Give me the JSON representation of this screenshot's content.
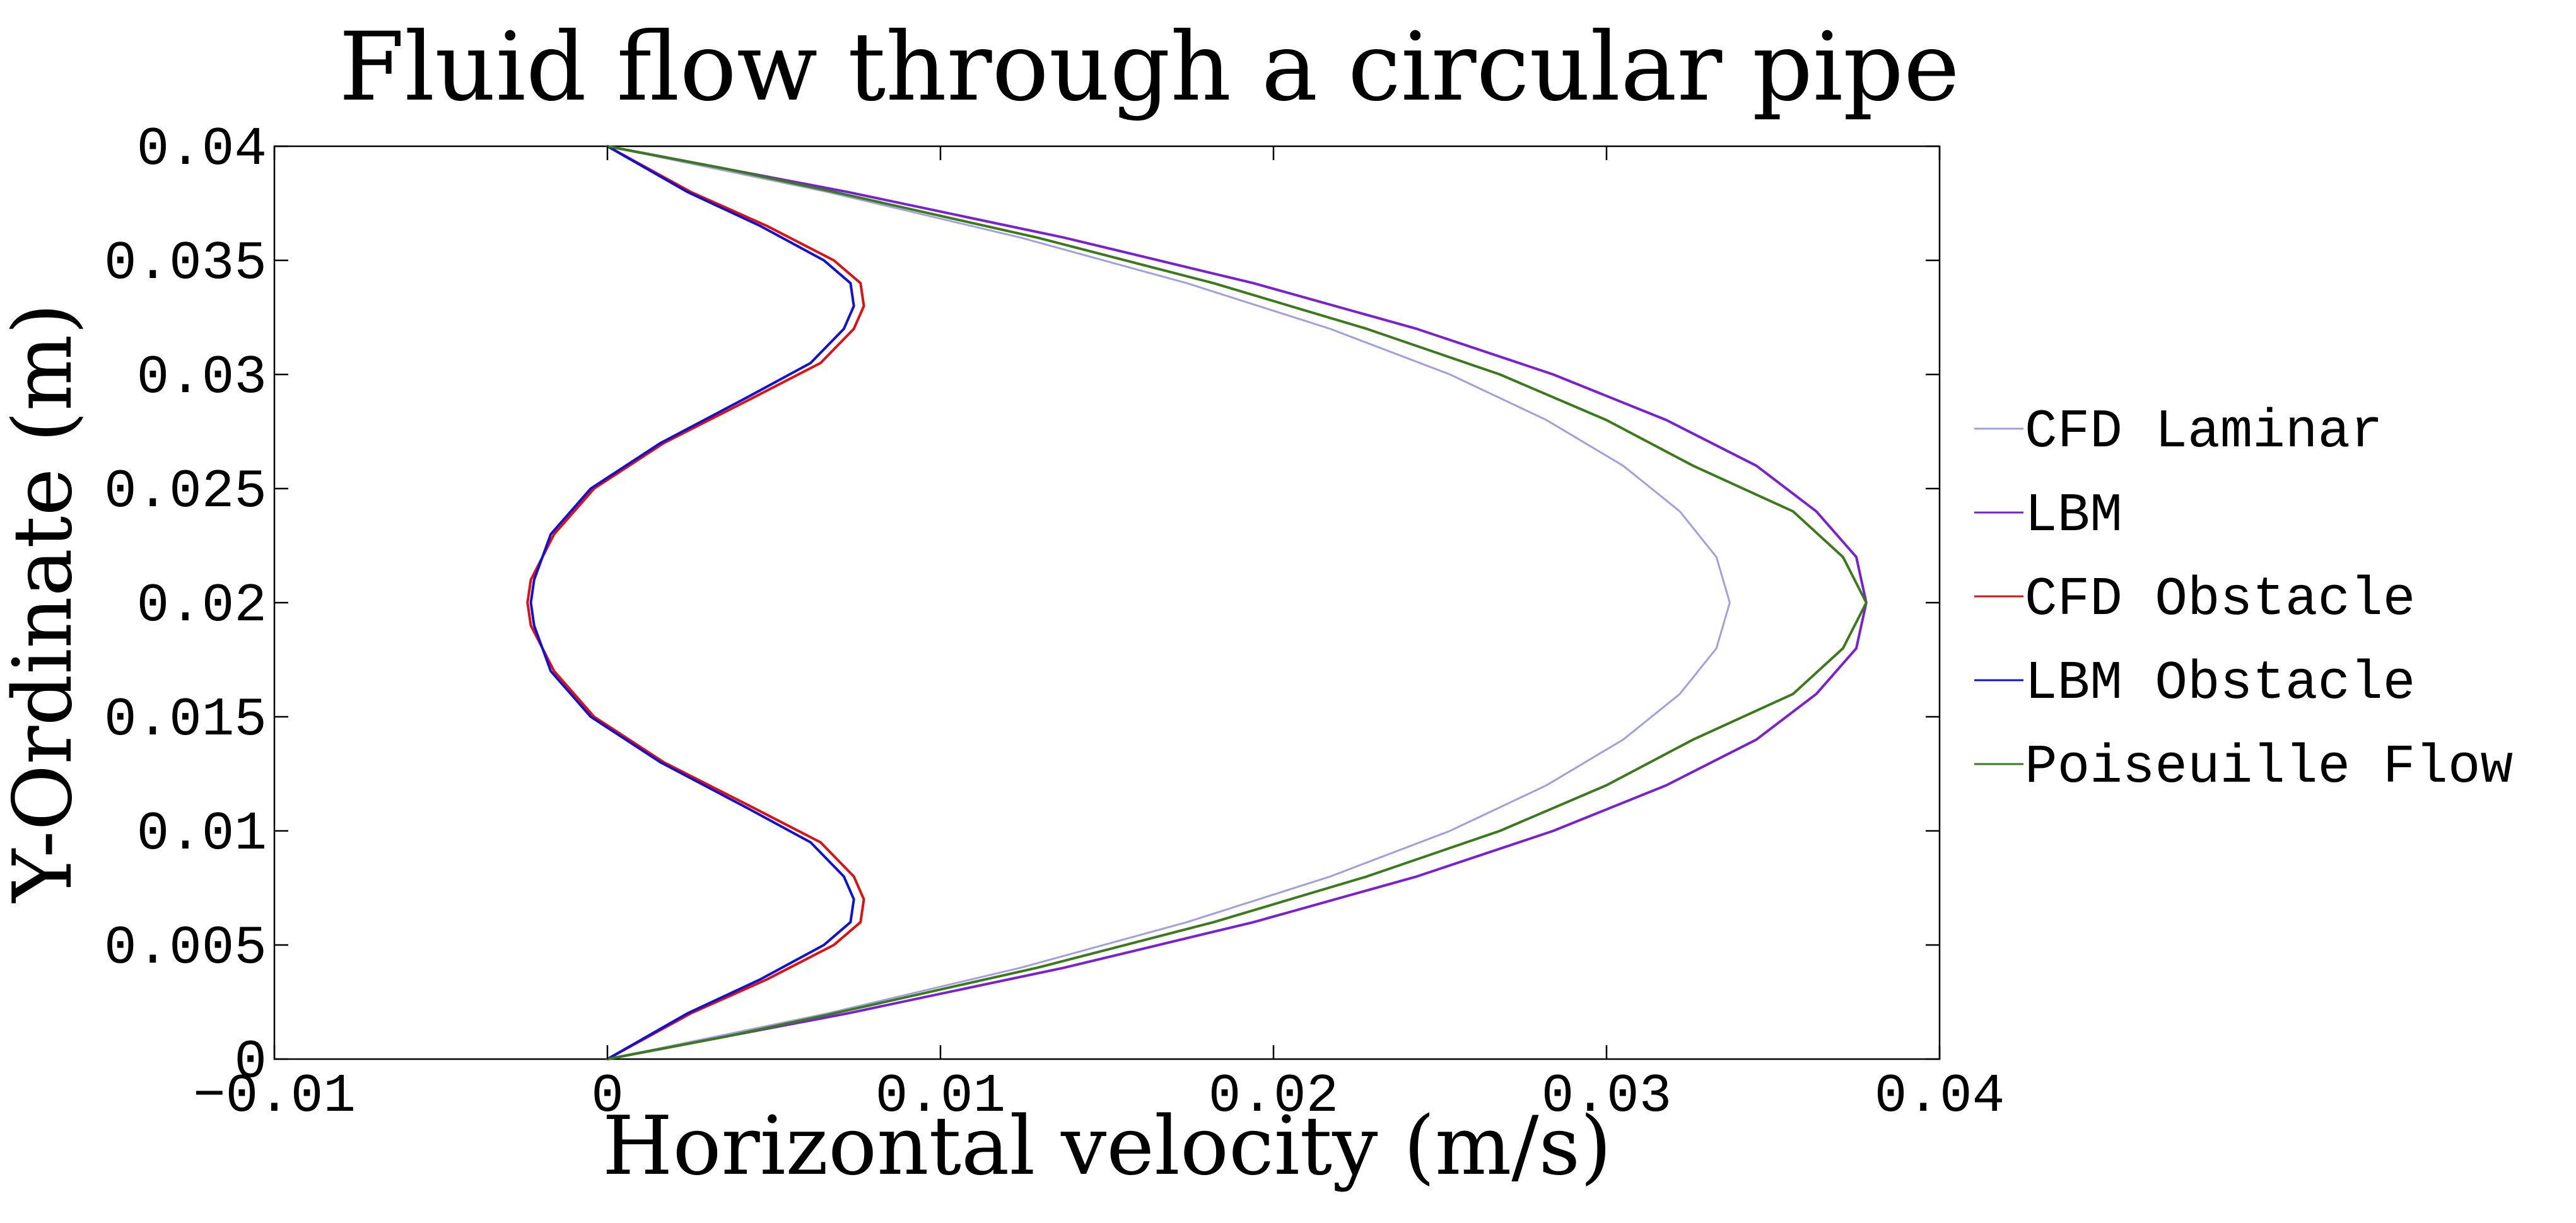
{
  "chart_data": {
    "type": "line",
    "title": "Fluid flow through a circular pipe",
    "xlabel": "Horizontal velocity (m/s)",
    "ylabel": "Y-Ordinate (m)",
    "xlim": [
      -0.01,
      0.04
    ],
    "ylim": [
      0,
      0.04
    ],
    "x_ticks": [
      -0.01,
      0,
      0.01,
      0.02,
      0.03,
      0.04
    ],
    "x_tick_labels": [
      "−0.01",
      "0",
      "0.01",
      "0.02",
      "0.03",
      "0.04"
    ],
    "y_ticks": [
      0,
      0.005,
      0.01,
      0.015,
      0.02,
      0.025,
      0.03,
      0.035,
      0.04
    ],
    "y_tick_labels": [
      "0",
      "0.005",
      "0.01",
      "0.015",
      "0.02",
      "0.025",
      "0.03",
      "0.035",
      "0.04"
    ],
    "grid": false,
    "legend_position": "right",
    "series": [
      {
        "name": "CFD Laminar",
        "color": "#a0a0e0",
        "points": [
          [
            0,
            0
          ],
          [
            0.0066,
            0.002
          ],
          [
            0.0124,
            0.004
          ],
          [
            0.0174,
            0.006
          ],
          [
            0.0217,
            0.008
          ],
          [
            0.0253,
            0.01
          ],
          [
            0.0282,
            0.012
          ],
          [
            0.0305,
            0.014
          ],
          [
            0.0322,
            0.016
          ],
          [
            0.0333,
            0.018
          ],
          [
            0.0337,
            0.02
          ],
          [
            0.0333,
            0.022
          ],
          [
            0.0322,
            0.024
          ],
          [
            0.0305,
            0.026
          ],
          [
            0.0282,
            0.028
          ],
          [
            0.0253,
            0.03
          ],
          [
            0.0217,
            0.032
          ],
          [
            0.0174,
            0.034
          ],
          [
            0.0124,
            0.036
          ],
          [
            0.0066,
            0.038
          ],
          [
            0,
            0.04
          ]
        ]
      },
      {
        "name": "LBM",
        "color": "#7a1fd6",
        "points": [
          [
            0,
            0
          ],
          [
            0.0072,
            0.002
          ],
          [
            0.0137,
            0.004
          ],
          [
            0.0194,
            0.006
          ],
          [
            0.0243,
            0.008
          ],
          [
            0.0284,
            0.01
          ],
          [
            0.0318,
            0.012
          ],
          [
            0.0345,
            0.014
          ],
          [
            0.0363,
            0.016
          ],
          [
            0.0375,
            0.018
          ],
          [
            0.0378,
            0.02
          ],
          [
            0.0375,
            0.022
          ],
          [
            0.0363,
            0.024
          ],
          [
            0.0345,
            0.026
          ],
          [
            0.0318,
            0.028
          ],
          [
            0.0284,
            0.03
          ],
          [
            0.0243,
            0.032
          ],
          [
            0.0194,
            0.034
          ],
          [
            0.0137,
            0.036
          ],
          [
            0.0072,
            0.038
          ],
          [
            0,
            0.04
          ]
        ]
      },
      {
        "name": "CFD Obstacle",
        "color": "#e01010",
        "points": [
          [
            0,
            0
          ],
          [
            0.0025,
            0.002
          ],
          [
            0.0048,
            0.0035
          ],
          [
            0.0068,
            0.005
          ],
          [
            0.0076,
            0.006
          ],
          [
            0.0077,
            0.007
          ],
          [
            0.0074,
            0.008
          ],
          [
            0.0064,
            0.0095
          ],
          [
            0.0044,
            0.011
          ],
          [
            0.0017,
            0.013
          ],
          [
            -0.0004,
            0.015
          ],
          [
            -0.0016,
            0.017
          ],
          [
            -0.0023,
            0.019
          ],
          [
            -0.0024,
            0.02
          ],
          [
            -0.0023,
            0.021
          ],
          [
            -0.0016,
            0.023
          ],
          [
            -0.0004,
            0.025
          ],
          [
            0.0017,
            0.027
          ],
          [
            0.0044,
            0.029
          ],
          [
            0.0064,
            0.0305
          ],
          [
            0.0074,
            0.032
          ],
          [
            0.0077,
            0.033
          ],
          [
            0.0076,
            0.034
          ],
          [
            0.0068,
            0.035
          ],
          [
            0.0048,
            0.0365
          ],
          [
            0.0025,
            0.038
          ],
          [
            0,
            0.04
          ]
        ]
      },
      {
        "name": "LBM Obstacle",
        "color": "#1010d8",
        "points": [
          [
            0,
            0
          ],
          [
            0.0024,
            0.002
          ],
          [
            0.0046,
            0.0035
          ],
          [
            0.0065,
            0.005
          ],
          [
            0.0073,
            0.006
          ],
          [
            0.0074,
            0.007
          ],
          [
            0.0071,
            0.008
          ],
          [
            0.0061,
            0.0095
          ],
          [
            0.0042,
            0.011
          ],
          [
            0.0016,
            0.013
          ],
          [
            -0.0005,
            0.015
          ],
          [
            -0.0017,
            0.017
          ],
          [
            -0.0022,
            0.019
          ],
          [
            -0.0023,
            0.02
          ],
          [
            -0.0022,
            0.021
          ],
          [
            -0.0017,
            0.023
          ],
          [
            -0.0005,
            0.025
          ],
          [
            0.0016,
            0.027
          ],
          [
            0.0042,
            0.029
          ],
          [
            0.0061,
            0.0305
          ],
          [
            0.0071,
            0.032
          ],
          [
            0.0074,
            0.033
          ],
          [
            0.0073,
            0.034
          ],
          [
            0.0065,
            0.035
          ],
          [
            0.0046,
            0.0365
          ],
          [
            0.0024,
            0.038
          ],
          [
            0,
            0.04
          ]
        ]
      },
      {
        "name": "Poiseuille Flow",
        "color": "#3b7a1a",
        "points": [
          [
            0,
            0
          ],
          [
            0.0036,
            0.001
          ],
          [
            0.0068,
            0.002
          ],
          [
            0.0129,
            0.004
          ],
          [
            0.0182,
            0.006
          ],
          [
            0.0228,
            0.008
          ],
          [
            0.0268,
            0.01
          ],
          [
            0.03,
            0.012
          ],
          [
            0.0326,
            0.014
          ],
          [
            0.0356,
            0.016
          ],
          [
            0.0371,
            0.018
          ],
          [
            0.0378,
            0.02
          ],
          [
            0.0371,
            0.022
          ],
          [
            0.0356,
            0.024
          ],
          [
            0.0326,
            0.026
          ],
          [
            0.03,
            0.028
          ],
          [
            0.0268,
            0.03
          ],
          [
            0.0228,
            0.032
          ],
          [
            0.0182,
            0.034
          ],
          [
            0.0129,
            0.036
          ],
          [
            0.0068,
            0.038
          ],
          [
            0.0036,
            0.039
          ],
          [
            0,
            0.04
          ]
        ]
      }
    ]
  }
}
